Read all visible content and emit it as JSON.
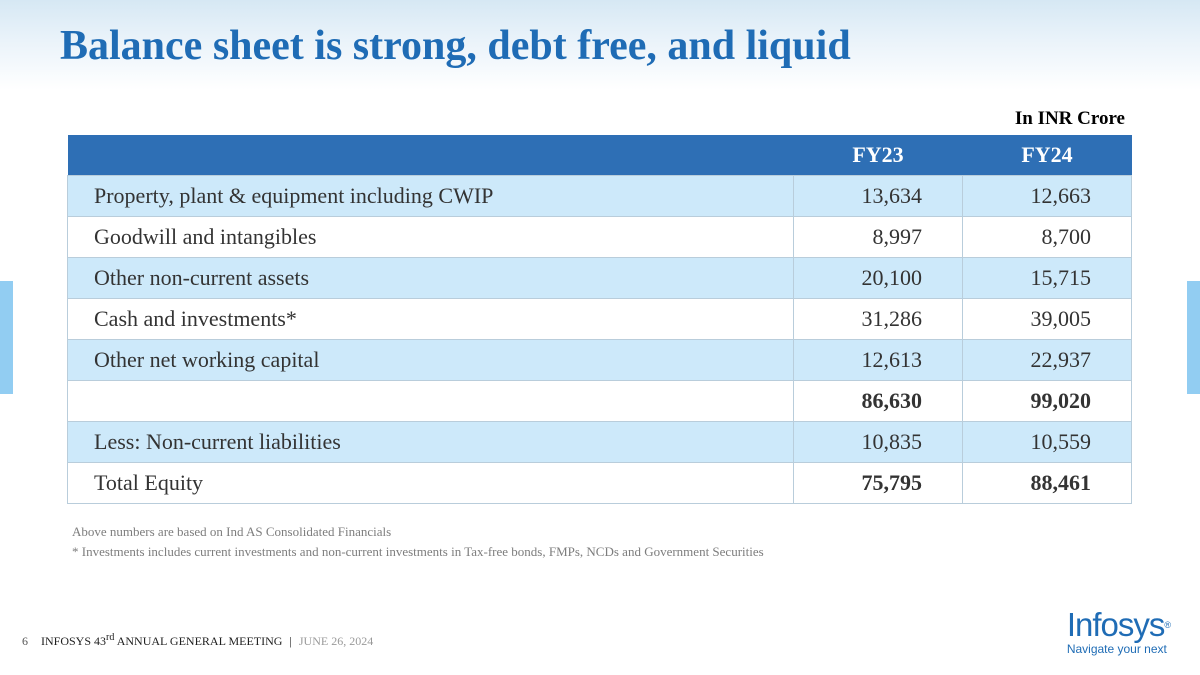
{
  "title": "Balance sheet is strong, debt free, and liquid",
  "unit_label": "In INR Crore",
  "table": {
    "headers": [
      "",
      "FY23",
      "FY24"
    ],
    "rows": [
      {
        "label": "Property, plant & equipment including CWIP",
        "fy23": "13,634",
        "fy24": "12,663"
      },
      {
        "label": "Goodwill and intangibles",
        "fy23": "8,997",
        "fy24": "8,700"
      },
      {
        "label": "Other non-current assets",
        "fy23": "20,100",
        "fy24": "15,715"
      },
      {
        "label": "Cash and investments*",
        "fy23": "31,286",
        "fy24": "39,005"
      },
      {
        "label": "Other net working capital",
        "fy23": "12,613",
        "fy24": "22,937"
      },
      {
        "label": "",
        "fy23": "86,630",
        "fy24": "99,020"
      },
      {
        "label": "Less: Non-current liabilities",
        "fy23": "10,835",
        "fy24": "10,559"
      },
      {
        "label": "Total Equity",
        "fy23": "75,795",
        "fy24": "88,461"
      }
    ]
  },
  "notes": [
    "Above numbers are based on Ind AS Consolidated Financials",
    "* Investments includes current investments and non-current investments in Tax-free bonds, FMPs, NCDs and Government Securities"
  ],
  "footer": {
    "page_number": "6",
    "event_prefix": "INFOSYS 43",
    "event_sup": "rd",
    "event_suffix": " ANNUAL GENERAL MEETING",
    "separator": "|",
    "date": "JUNE 26, 2024"
  },
  "logo": {
    "brand": "Infosys",
    "registered": "®",
    "tagline": "Navigate your next"
  },
  "colors": {
    "title": "#1f6cb5",
    "header_bg": "#2e6fb5",
    "row_alt_bg": "#cde9fa",
    "side_bar": "#92cdf2"
  }
}
